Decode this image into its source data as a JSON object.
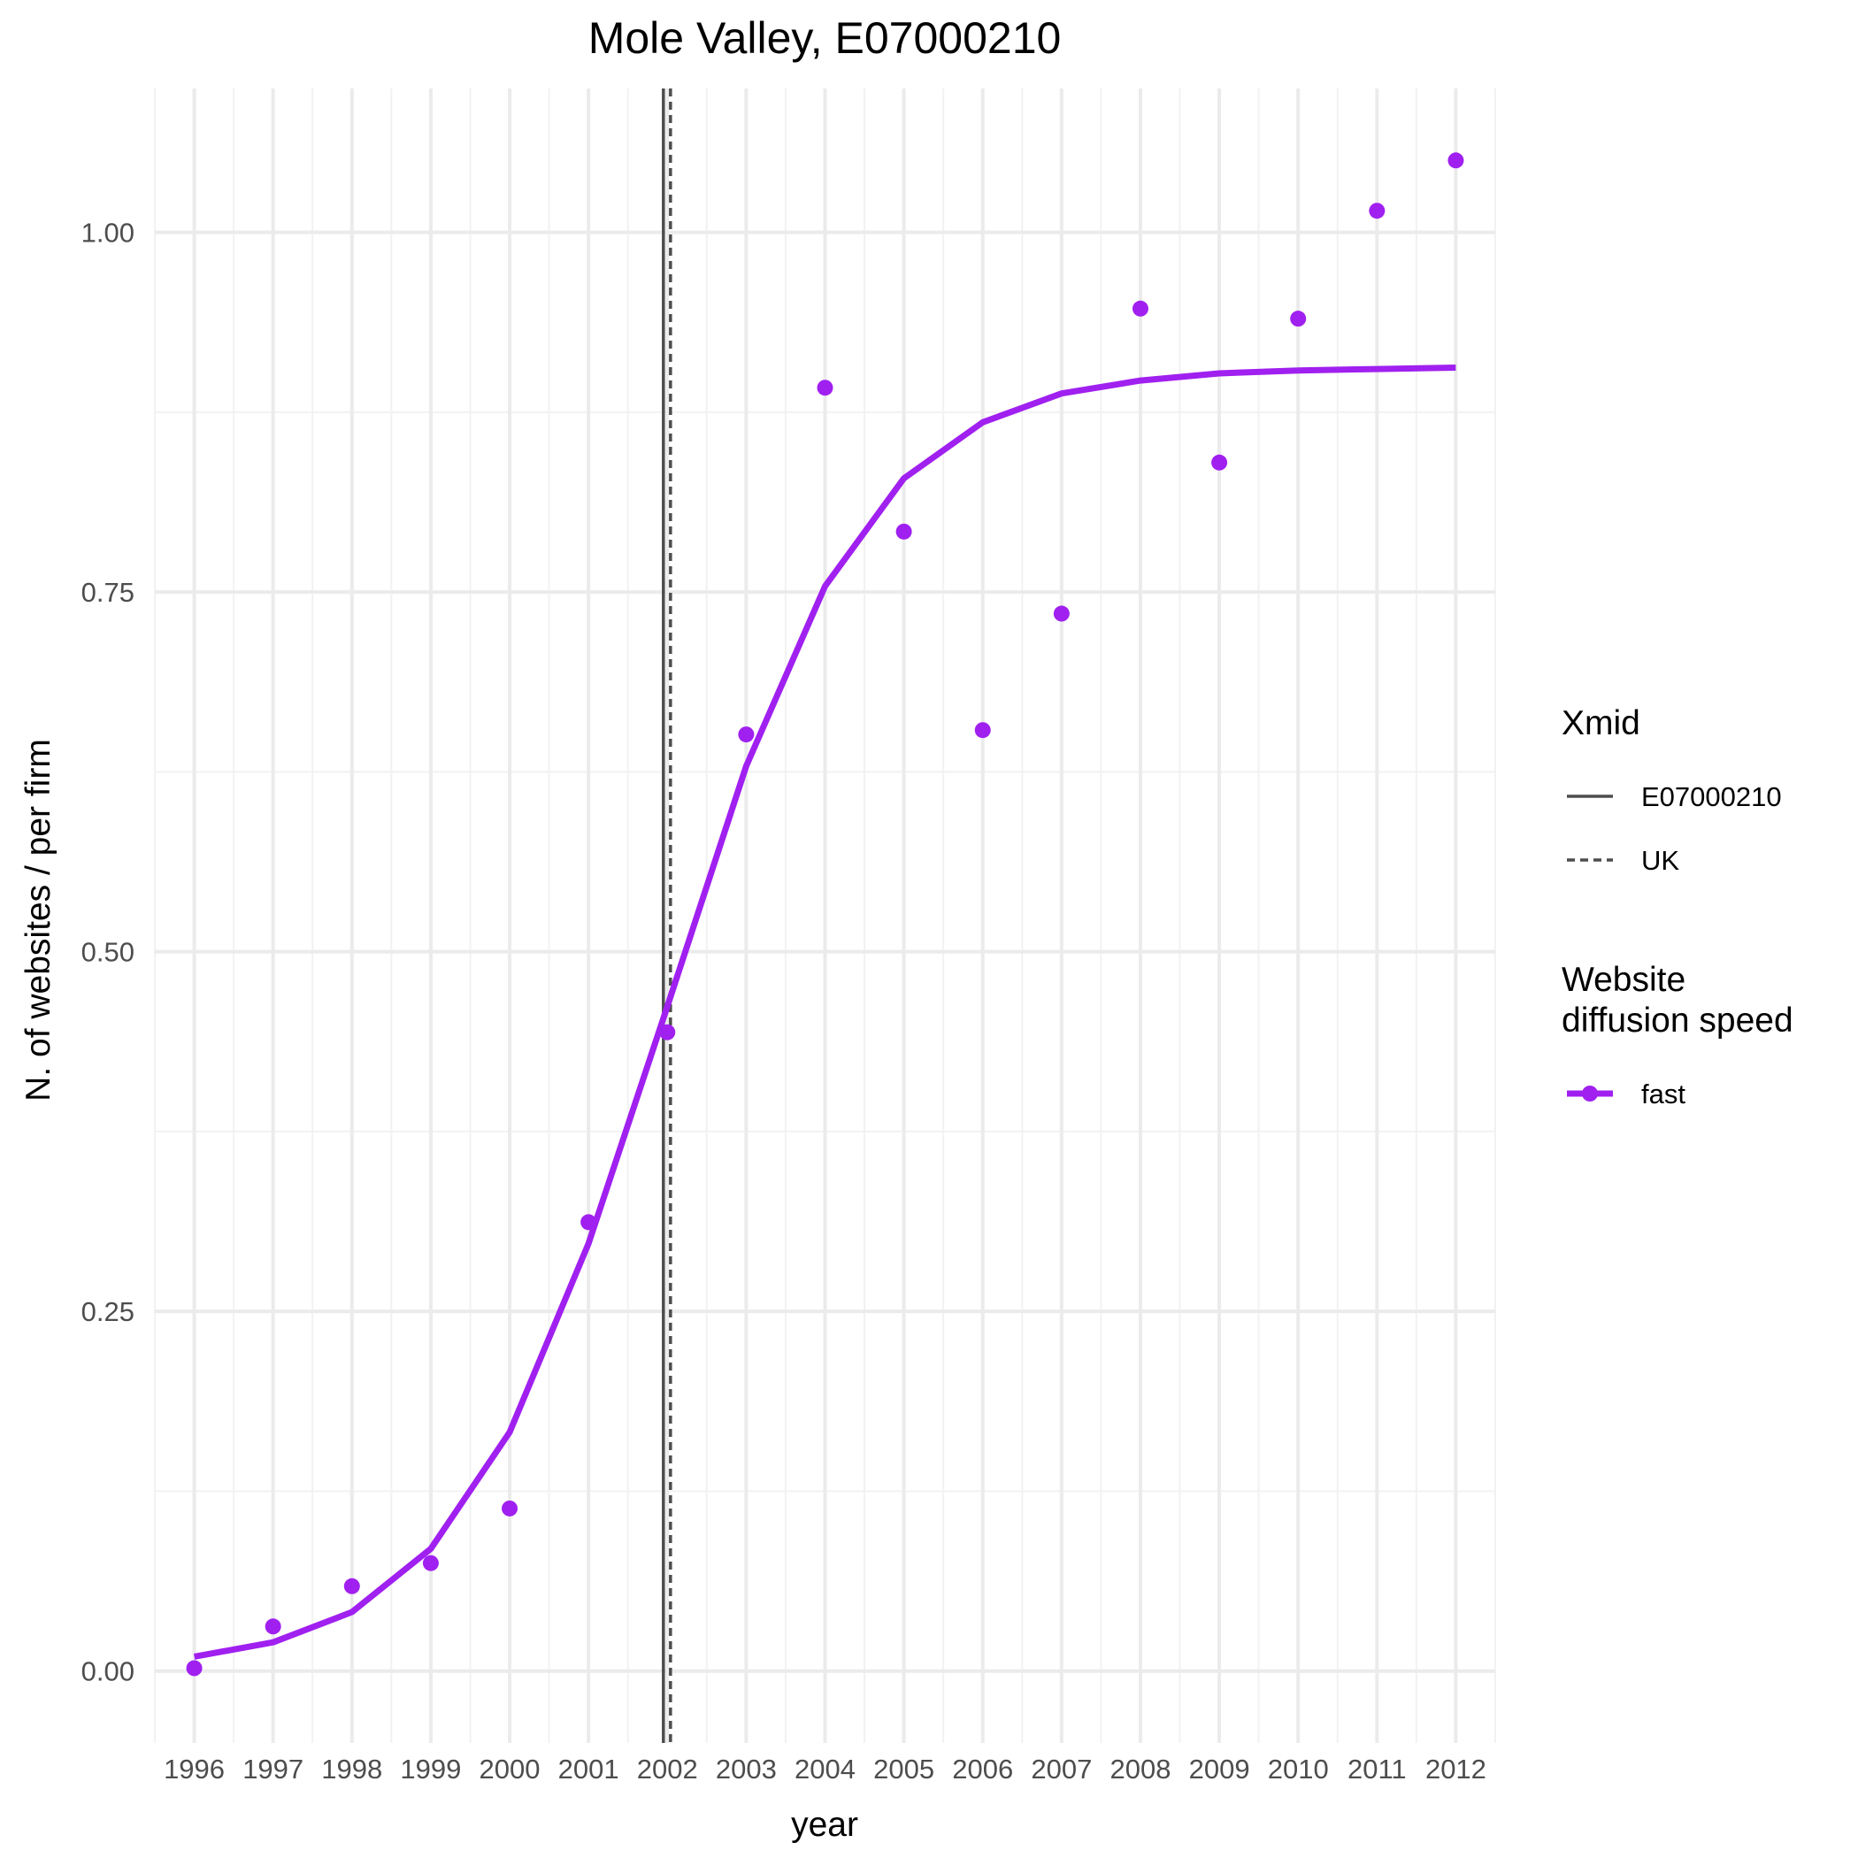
{
  "chart_data": {
    "type": "line",
    "title": "Mole Valley, E07000210",
    "xlabel": "year",
    "ylabel": "N. of websites / per firm",
    "xlim": [
      1995.5,
      2012.5
    ],
    "ylim": [
      -0.05,
      1.1
    ],
    "grid": true,
    "x_ticks": [
      "1996",
      "1997",
      "1998",
      "1999",
      "2000",
      "2001",
      "2002",
      "2003",
      "2004",
      "2005",
      "2006",
      "2007",
      "2008",
      "2009",
      "2010",
      "2011",
      "2012"
    ],
    "y_ticks": [
      "0.00",
      "0.25",
      "0.50",
      "0.75",
      "1.00"
    ],
    "y_tick_values": [
      0,
      0.25,
      0.5,
      0.75,
      1.0
    ],
    "series": [
      {
        "name": "fast",
        "color": "#a020f0",
        "x": [
          1996,
          1997,
          1998,
          1999,
          2000,
          2001,
          2002,
          2003,
          2004,
          2005,
          2006,
          2007,
          2008,
          2009,
          2010,
          2011,
          2012
        ],
        "fitted": [
          0.01,
          0.02,
          0.041,
          0.085,
          0.166,
          0.297,
          0.462,
          0.629,
          0.754,
          0.829,
          0.868,
          0.888,
          0.897,
          0.902,
          0.904,
          0.905,
          0.906
        ],
        "observed": [
          0.002,
          0.031,
          0.059,
          0.075,
          0.113,
          0.312,
          0.444,
          0.651,
          0.892,
          0.792,
          0.654,
          0.735,
          0.947,
          0.84,
          0.94,
          1.015,
          1.05
        ]
      }
    ],
    "vlines": [
      {
        "name": "E07000210",
        "x": 2001.95,
        "style": "solid",
        "color": "#4d4d4d"
      },
      {
        "name": "UK",
        "x": 2002.04,
        "style": "dashed",
        "color": "#4d4d4d"
      }
    ],
    "legend": {
      "position": "right",
      "groups": [
        {
          "title_lines": [
            "Xmid"
          ],
          "entries": [
            {
              "label": "E07000210",
              "kind": "solid-line"
            },
            {
              "label": "UK",
              "kind": "dashed-line"
            }
          ]
        },
        {
          "title_lines": [
            "Website",
            "diffusion speed"
          ],
          "entries": [
            {
              "label": "fast",
              "kind": "point-line",
              "color": "#a020f0"
            }
          ]
        }
      ]
    }
  }
}
